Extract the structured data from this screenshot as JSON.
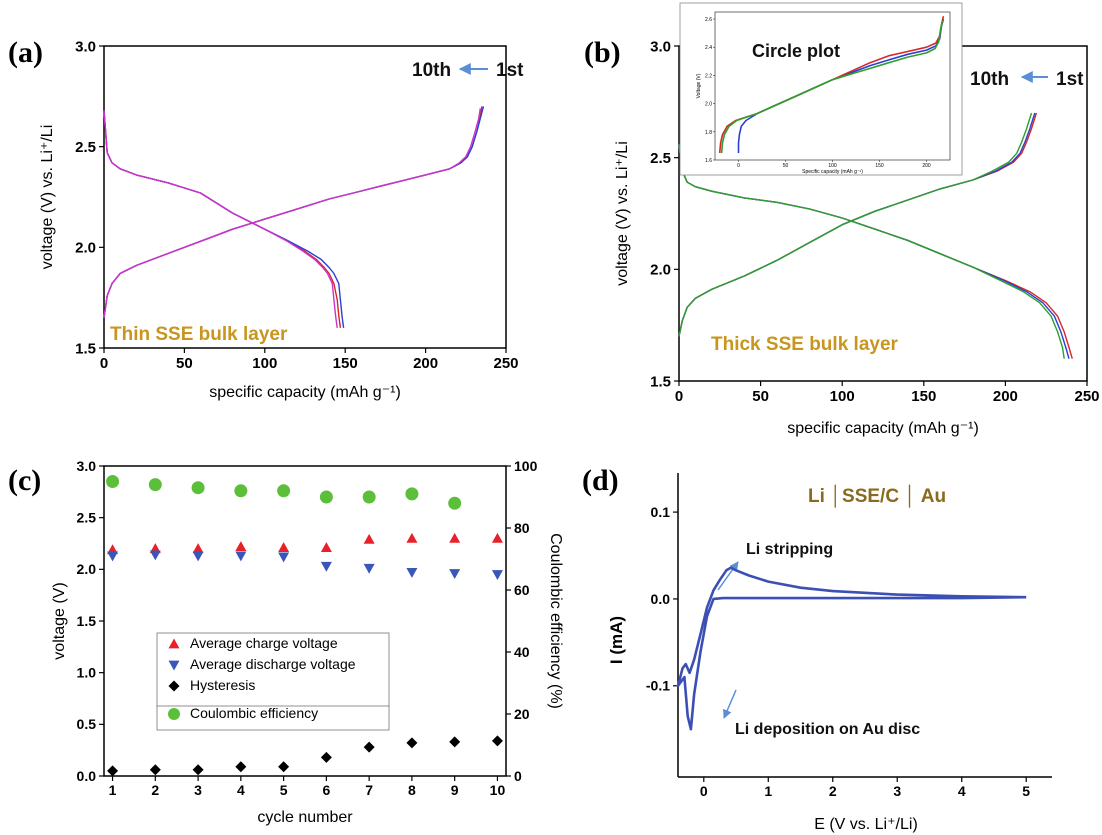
{
  "panels": [
    {
      "letter": "(a)",
      "annotations": {
        "order": "10th",
        "order_end": "1st",
        "layer": "Thin SSE bulk layer"
      }
    },
    {
      "letter": "(b)",
      "annotations": {
        "order": "10th",
        "order_end": "1st",
        "layer": "Thick SSE bulk layer",
        "inset_title": "Circle plot"
      }
    },
    {
      "letter": "(c)"
    },
    {
      "letter": "(d)",
      "annotations": {
        "cell": "Li │SSE/C │ Au",
        "stripping": "Li stripping",
        "deposition": "Li deposition on Au disc"
      }
    }
  ],
  "colors": {
    "cycle_1": "#d62728",
    "cycle_mid": "#2a3fd6",
    "cycle_10": "#2ca02c",
    "cycle_10_a": "#cc33cc",
    "charge": "#e8202a",
    "discharge": "#3a56b8",
    "hysteresis": "#000000",
    "coulombic": "#5cbf3a",
    "cv": "#3c4fb5",
    "annotation_gold": "#c8961e",
    "annotation_brown": "#8a6a1e"
  },
  "chart_data": [
    {
      "panel": "(a)",
      "type": "line",
      "xlabel": "specific capacity (mAh g⁻¹)",
      "ylabel": "voltage (V) vs. Li⁺/Li",
      "xlim": [
        0,
        250
      ],
      "ylim": [
        1.5,
        3.0
      ],
      "xticks": [
        "0",
        "50",
        "100",
        "150",
        "200",
        "250"
      ],
      "yticks": [
        "1.5",
        "2.0",
        "2.5",
        "3.0"
      ],
      "series": [
        {
          "curve": "charge",
          "color_key": "cycle_1",
          "x": [
            0,
            2,
            5,
            10,
            20,
            40,
            60,
            80,
            100,
            120,
            140,
            160,
            180,
            200,
            215,
            222,
            226,
            229,
            232,
            234,
            235
          ],
          "y": [
            1.65,
            1.76,
            1.82,
            1.87,
            1.91,
            1.97,
            2.03,
            2.09,
            2.14,
            2.19,
            2.24,
            2.28,
            2.32,
            2.36,
            2.39,
            2.42,
            2.45,
            2.5,
            2.58,
            2.65,
            2.7
          ]
        },
        {
          "curve": "charge",
          "color_key": "cycle_mid",
          "x": [
            0,
            2,
            5,
            10,
            20,
            40,
            60,
            80,
            100,
            120,
            140,
            160,
            180,
            200,
            215,
            222,
            226,
            229,
            232,
            234,
            236
          ],
          "y": [
            1.65,
            1.76,
            1.82,
            1.87,
            1.91,
            1.97,
            2.03,
            2.09,
            2.14,
            2.19,
            2.24,
            2.28,
            2.32,
            2.36,
            2.39,
            2.42,
            2.45,
            2.5,
            2.58,
            2.64,
            2.7
          ]
        },
        {
          "curve": "charge",
          "color_key": "cycle_10_a",
          "x": [
            0,
            2,
            5,
            10,
            20,
            40,
            60,
            80,
            100,
            120,
            140,
            160,
            180,
            200,
            215,
            221,
            225,
            228,
            231,
            233,
            234
          ],
          "y": [
            1.65,
            1.76,
            1.82,
            1.87,
            1.91,
            1.97,
            2.03,
            2.09,
            2.14,
            2.19,
            2.24,
            2.28,
            2.32,
            2.36,
            2.39,
            2.42,
            2.45,
            2.5,
            2.58,
            2.64,
            2.69
          ]
        },
        {
          "curve": "discharge",
          "color_key": "cycle_1",
          "x": [
            0,
            2,
            5,
            10,
            20,
            40,
            60,
            80,
            100,
            115,
            125,
            132,
            137,
            140,
            143,
            145,
            146,
            147
          ],
          "y": [
            2.68,
            2.47,
            2.42,
            2.39,
            2.36,
            2.32,
            2.27,
            2.17,
            2.09,
            2.03,
            1.98,
            1.94,
            1.9,
            1.87,
            1.82,
            1.74,
            1.66,
            1.6
          ]
        },
        {
          "curve": "discharge",
          "color_key": "cycle_mid",
          "x": [
            0,
            2,
            5,
            10,
            20,
            40,
            60,
            80,
            100,
            115,
            127,
            135,
            140,
            143,
            146,
            147,
            148,
            149
          ],
          "y": [
            2.68,
            2.47,
            2.42,
            2.39,
            2.36,
            2.32,
            2.27,
            2.17,
            2.09,
            2.03,
            1.98,
            1.94,
            1.9,
            1.87,
            1.82,
            1.74,
            1.66,
            1.6
          ]
        },
        {
          "curve": "discharge",
          "color_key": "cycle_10_a",
          "x": [
            0,
            2,
            5,
            10,
            20,
            40,
            60,
            80,
            100,
            114,
            124,
            131,
            136,
            139,
            142,
            143,
            144,
            145
          ],
          "y": [
            2.68,
            2.47,
            2.42,
            2.39,
            2.36,
            2.32,
            2.27,
            2.17,
            2.09,
            2.03,
            1.98,
            1.94,
            1.9,
            1.87,
            1.82,
            1.74,
            1.66,
            1.6
          ]
        }
      ]
    },
    {
      "panel": "(b)",
      "type": "line",
      "xlabel": "specific capacity (mAh g⁻¹)",
      "ylabel": "voltage (V) vs. Li⁺/Li",
      "xlim": [
        0,
        250
      ],
      "ylim": [
        1.5,
        3.0
      ],
      "xticks": [
        "0",
        "50",
        "100",
        "150",
        "200",
        "250"
      ],
      "yticks": [
        "1.5",
        "2.0",
        "2.5",
        "3.0"
      ],
      "series": [
        {
          "curve": "charge",
          "color_key": "cycle_1",
          "x": [
            0,
            2,
            5,
            10,
            20,
            40,
            60,
            80,
            100,
            120,
            140,
            160,
            180,
            195,
            205,
            210,
            213,
            216,
            219
          ],
          "y": [
            1.7,
            1.77,
            1.83,
            1.87,
            1.91,
            1.97,
            2.04,
            2.12,
            2.2,
            2.26,
            2.31,
            2.36,
            2.4,
            2.44,
            2.48,
            2.52,
            2.57,
            2.63,
            2.7
          ]
        },
        {
          "curve": "charge",
          "color_key": "cycle_mid",
          "x": [
            0,
            2,
            5,
            10,
            20,
            40,
            60,
            80,
            100,
            120,
            140,
            160,
            180,
            194,
            204,
            209,
            212,
            215,
            218
          ],
          "y": [
            1.7,
            1.77,
            1.83,
            1.87,
            1.91,
            1.97,
            2.04,
            2.12,
            2.2,
            2.26,
            2.31,
            2.36,
            2.4,
            2.44,
            2.48,
            2.52,
            2.57,
            2.63,
            2.7
          ]
        },
        {
          "curve": "charge",
          "color_key": "cycle_10",
          "x": [
            0,
            2,
            5,
            10,
            20,
            40,
            60,
            80,
            100,
            120,
            140,
            160,
            180,
            192,
            202,
            207,
            210,
            213,
            216
          ],
          "y": [
            1.7,
            1.77,
            1.83,
            1.87,
            1.91,
            1.97,
            2.04,
            2.12,
            2.2,
            2.26,
            2.31,
            2.36,
            2.4,
            2.44,
            2.48,
            2.52,
            2.57,
            2.63,
            2.7
          ]
        },
        {
          "curve": "discharge",
          "color_key": "cycle_1",
          "x": [
            0,
            2,
            5,
            10,
            20,
            40,
            60,
            80,
            100,
            120,
            140,
            160,
            180,
            200,
            215,
            225,
            232,
            236,
            239,
            241
          ],
          "y": [
            2.56,
            2.44,
            2.39,
            2.37,
            2.35,
            2.32,
            2.3,
            2.27,
            2.23,
            2.18,
            2.13,
            2.07,
            2.01,
            1.95,
            1.9,
            1.85,
            1.79,
            1.72,
            1.65,
            1.6
          ]
        },
        {
          "curve": "discharge",
          "color_key": "cycle_mid",
          "x": [
            0,
            2,
            5,
            10,
            20,
            40,
            60,
            80,
            100,
            120,
            140,
            160,
            180,
            199,
            213,
            223,
            230,
            234,
            237,
            239
          ],
          "y": [
            2.56,
            2.44,
            2.39,
            2.37,
            2.35,
            2.32,
            2.3,
            2.27,
            2.23,
            2.18,
            2.13,
            2.07,
            2.01,
            1.95,
            1.9,
            1.85,
            1.79,
            1.72,
            1.65,
            1.6
          ]
        },
        {
          "curve": "discharge",
          "color_key": "cycle_10",
          "x": [
            0,
            2,
            5,
            10,
            20,
            40,
            60,
            80,
            100,
            120,
            140,
            160,
            180,
            197,
            211,
            221,
            228,
            232,
            235,
            236
          ],
          "y": [
            2.56,
            2.44,
            2.39,
            2.37,
            2.35,
            2.32,
            2.3,
            2.27,
            2.23,
            2.18,
            2.13,
            2.07,
            2.01,
            1.95,
            1.9,
            1.85,
            1.79,
            1.72,
            1.65,
            1.6
          ]
        }
      ]
    },
    {
      "panel": "(b) inset",
      "type": "line",
      "title": "Circle plot",
      "xlabel": "Specific capacity (mAh g⁻¹)",
      "ylabel": "Voltage (V)",
      "xlim": [
        -25,
        225
      ],
      "ylim": [
        1.6,
        2.65
      ],
      "xticks": [
        "0",
        "50",
        "100",
        "150",
        "200"
      ],
      "yticks": [
        "1.6",
        "1.8",
        "2.0",
        "2.2",
        "2.4",
        "2.6"
      ],
      "series": [
        {
          "color_key": "cycle_mid",
          "x": [
            0,
            0,
            1,
            3,
            8,
            20,
            40,
            60,
            80,
            100,
            120,
            140,
            160,
            180,
            200,
            210,
            214,
            216,
            218
          ],
          "y": [
            1.65,
            1.72,
            1.78,
            1.84,
            1.88,
            1.93,
            1.99,
            2.05,
            2.11,
            2.17,
            2.22,
            2.27,
            2.31,
            2.35,
            2.38,
            2.41,
            2.46,
            2.55,
            2.6
          ]
        },
        {
          "color_key": "cycle_1",
          "x": [
            -20,
            -19,
            -17,
            -12,
            -3,
            20,
            40,
            60,
            80,
            100,
            120,
            140,
            160,
            180,
            200,
            210,
            214,
            216,
            218
          ],
          "y": [
            1.65,
            1.72,
            1.78,
            1.84,
            1.88,
            1.93,
            1.99,
            2.05,
            2.11,
            2.17,
            2.23,
            2.29,
            2.34,
            2.37,
            2.4,
            2.43,
            2.48,
            2.56,
            2.62
          ]
        },
        {
          "color_key": "cycle_10",
          "x": [
            -18,
            -17,
            -15,
            -10,
            -2,
            20,
            40,
            60,
            80,
            100,
            120,
            140,
            160,
            180,
            200,
            209,
            213,
            215,
            217
          ],
          "y": [
            1.65,
            1.72,
            1.78,
            1.84,
            1.88,
            1.93,
            1.99,
            2.05,
            2.11,
            2.17,
            2.21,
            2.25,
            2.29,
            2.33,
            2.36,
            2.39,
            2.44,
            2.53,
            2.59
          ]
        }
      ]
    },
    {
      "panel": "(c)",
      "type": "scatter",
      "xlabel": "cycle number",
      "ylabel": "voltage (V)",
      "y2label": "Coulombic efficiency (%)",
      "xlim": [
        0.8,
        10.2
      ],
      "ylim": [
        0,
        3.0
      ],
      "y2lim": [
        0,
        100
      ],
      "xticks": [
        "1",
        "2",
        "3",
        "4",
        "5",
        "6",
        "7",
        "8",
        "9",
        "10"
      ],
      "yticks": [
        "0.0",
        "0.5",
        "1.0",
        "1.5",
        "2.0",
        "2.5",
        "3.0"
      ],
      "y2ticks": [
        "0",
        "20",
        "40",
        "60",
        "80",
        "100"
      ],
      "legend": "center-left",
      "x": [
        1,
        2,
        3,
        4,
        5,
        6,
        7,
        8,
        9,
        10
      ],
      "series": [
        {
          "name": "Average charge voltage",
          "marker": "triangle-up",
          "color_key": "charge",
          "axis": "left",
          "values": [
            2.19,
            2.2,
            2.2,
            2.22,
            2.21,
            2.21,
            2.29,
            2.3,
            2.3,
            2.3
          ]
        },
        {
          "name": "Average discharge voltage",
          "marker": "triangle-down",
          "color_key": "discharge",
          "axis": "left",
          "values": [
            2.13,
            2.14,
            2.13,
            2.13,
            2.12,
            2.03,
            2.01,
            1.97,
            1.96,
            1.95
          ]
        },
        {
          "name": "Hysteresis",
          "marker": "diamond",
          "color_key": "hysteresis",
          "axis": "left",
          "values": [
            0.05,
            0.06,
            0.06,
            0.09,
            0.09,
            0.18,
            0.28,
            0.32,
            0.33,
            0.34
          ]
        },
        {
          "name": "Coulombic efficiency",
          "marker": "circle",
          "color_key": "coulombic",
          "axis": "right",
          "values": [
            95,
            94,
            93,
            92,
            92,
            90,
            90,
            91,
            88,
            null
          ]
        }
      ]
    },
    {
      "panel": "(d)",
      "type": "line",
      "xlabel": "E (V vs. Li⁺/Li)",
      "ylabel": "I (mA)",
      "xlim": [
        -0.4,
        5.4
      ],
      "ylim": [
        -0.205,
        0.145
      ],
      "xticks": [
        "0",
        "1",
        "2",
        "3",
        "4",
        "5"
      ],
      "yticks": [
        "-0.1",
        "0.0",
        "0.1"
      ],
      "series": [
        {
          "color_key": "cv",
          "x": [
            5.0,
            4.0,
            3.0,
            2.0,
            1.0,
            0.5,
            0.3,
            0.15,
            0.05,
            -0.05,
            -0.15,
            -0.2,
            -0.25,
            -0.3,
            -0.4,
            -0.33,
            -0.28,
            -0.22,
            -0.15,
            -0.05,
            0.05,
            0.15,
            0.25,
            0.35,
            0.42,
            0.5,
            0.7,
            1.0,
            1.5,
            2.0,
            3.0,
            4.0,
            5.0
          ],
          "y": [
            0.002,
            0.001,
            0.001,
            0.001,
            0.001,
            0.001,
            0.001,
            0.0,
            -0.02,
            -0.06,
            -0.11,
            -0.15,
            -0.135,
            -0.09,
            -0.1,
            -0.08,
            -0.075,
            -0.085,
            -0.07,
            -0.04,
            -0.01,
            0.01,
            0.022,
            0.033,
            0.036,
            0.033,
            0.027,
            0.02,
            0.013,
            0.009,
            0.005,
            0.003,
            0.002
          ]
        }
      ]
    }
  ]
}
